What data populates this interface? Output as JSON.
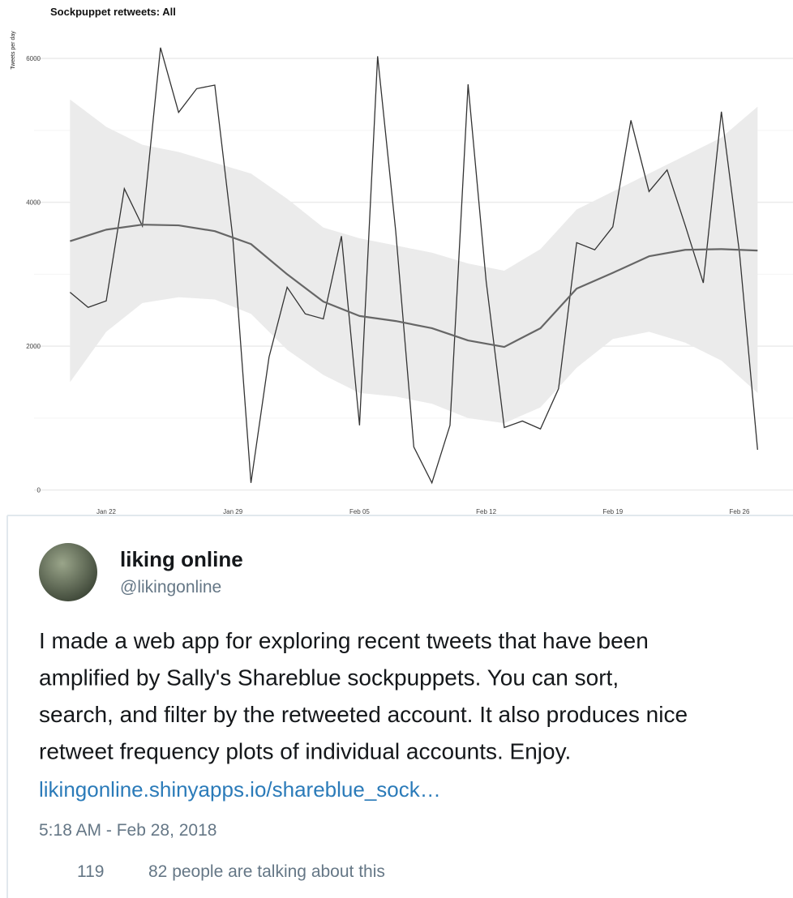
{
  "chart_data": {
    "type": "line",
    "title": "Sockpuppet retweets: All",
    "ylabel": "Tweets per day",
    "x": [
      "Jan 20",
      "Jan 21",
      "Jan 22",
      "Jan 23",
      "Jan 24",
      "Jan 25",
      "Jan 26",
      "Jan 27",
      "Jan 28",
      "Jan 29",
      "Jan 30",
      "Jan 31",
      "Feb 01",
      "Feb 02",
      "Feb 03",
      "Feb 04",
      "Feb 05",
      "Feb 06",
      "Feb 07",
      "Feb 08",
      "Feb 09",
      "Feb 10",
      "Feb 11",
      "Feb 12",
      "Feb 13",
      "Feb 14",
      "Feb 15",
      "Feb 16",
      "Feb 17",
      "Feb 18",
      "Feb 19",
      "Feb 20",
      "Feb 21",
      "Feb 22",
      "Feb 23",
      "Feb 24",
      "Feb 25",
      "Feb 26",
      "Feb 27"
    ],
    "values": [
      2750,
      2540,
      2630,
      4190,
      3670,
      6150,
      5250,
      5580,
      5630,
      3500,
      100,
      1850,
      2820,
      2450,
      2380,
      3530,
      900,
      6030,
      3600,
      600,
      100,
      900,
      5640,
      2900,
      870,
      960,
      850,
      1410,
      3440,
      3340,
      3660,
      5140,
      4150,
      4450,
      3680,
      2880,
      5260,
      3300,
      560
    ],
    "color": "#333333",
    "trend": {
      "x": [
        "Jan 20",
        "Jan 22",
        "Jan 24",
        "Jan 26",
        "Jan 28",
        "Jan 30",
        "Feb 01",
        "Feb 03",
        "Feb 05",
        "Feb 07",
        "Feb 09",
        "Feb 11",
        "Feb 13",
        "Feb 15",
        "Feb 17",
        "Feb 19",
        "Feb 21",
        "Feb 23",
        "Feb 25",
        "Feb 27"
      ],
      "values": [
        3460,
        3620,
        3690,
        3680,
        3600,
        3420,
        3000,
        2620,
        2420,
        2350,
        2250,
        2080,
        1990,
        2250,
        2800,
        3020,
        3250,
        3340,
        3350,
        3330
      ],
      "upper": [
        5430,
        5050,
        4800,
        4700,
        4550,
        4400,
        4050,
        3650,
        3500,
        3400,
        3300,
        3150,
        3050,
        3350,
        3900,
        4150,
        4400,
        4650,
        4900,
        5330
      ],
      "lower": [
        1500,
        2200,
        2600,
        2680,
        2650,
        2450,
        1950,
        1600,
        1350,
        1300,
        1200,
        1000,
        930,
        1150,
        1700,
        2100,
        2200,
        2050,
        1800,
        1350
      ],
      "color": "#666666",
      "band_color": "#ebebeb"
    },
    "ylim": [
      -150,
      6700
    ],
    "yticks": [
      0,
      2000,
      4000,
      6000
    ],
    "minor_grid": [
      1000,
      3000,
      5000
    ],
    "grid": true,
    "xticks": [
      "Jan 22",
      "Jan 29",
      "Feb 05",
      "Feb 12",
      "Feb 19",
      "Feb 26"
    ]
  },
  "tweet": {
    "name": "liking online",
    "handle": "@likingonline",
    "text": [
      "I made a web app for exploring recent tweets that have been",
      "amplified by Sally's Shareblue sockpuppets. You can sort,",
      "search, and filter by the retweeted account. It also produces nice",
      "retweet frequency plots of individual accounts. Enjoy."
    ],
    "link": "likingonline.shinyapps.io/shareblue_sock…",
    "time": "5:18 AM - Feb 28, 2018",
    "likes": "119",
    "talking": "82 people are talking about this"
  }
}
